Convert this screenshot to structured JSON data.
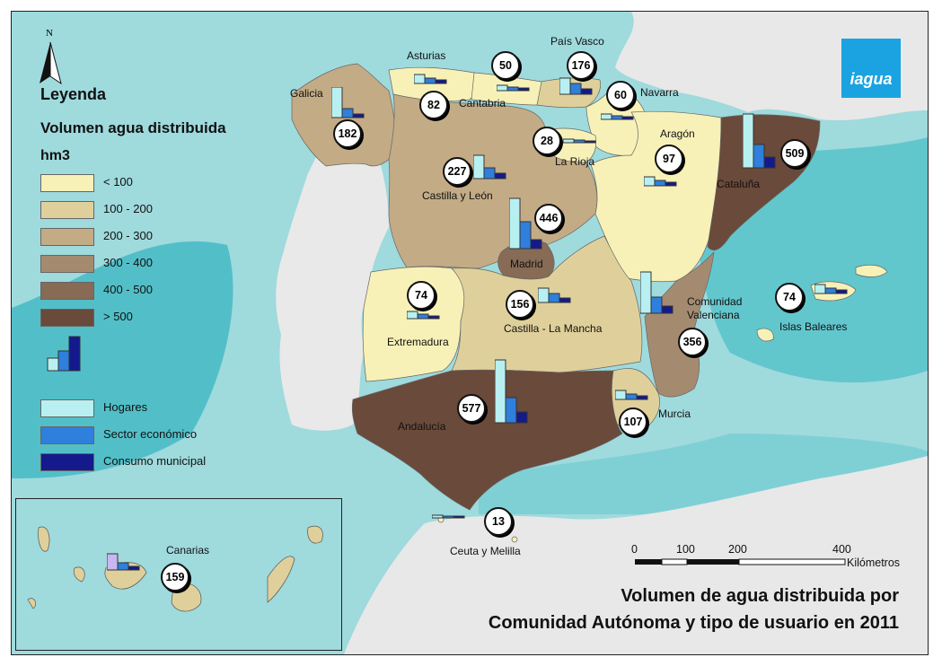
{
  "logo": {
    "text": "iagua",
    "color": "#1aa3e0"
  },
  "north_arrow": {
    "label": "N"
  },
  "legend": {
    "heading": "Leyenda",
    "title": "Volumen agua distribuida",
    "unit": "hm3",
    "classes": [
      {
        "label": "< 100",
        "color": "#f7f1b8"
      },
      {
        "label": "100 - 200",
        "color": "#dfd09b"
      },
      {
        "label": "200 - 300",
        "color": "#c3ab86"
      },
      {
        "label": "300 - 400",
        "color": "#a48b70"
      },
      {
        "label": "400 - 500",
        "color": "#876b55"
      },
      {
        "label": "> 500",
        "color": "#6a4a3a"
      }
    ],
    "users": [
      {
        "label": "Hogares",
        "color": "#b8f0f2"
      },
      {
        "label": "Sector económico",
        "color": "#2f7fdc"
      },
      {
        "label": "Consumo municipal",
        "color": "#141a8c"
      }
    ]
  },
  "regions": [
    {
      "name": "Galicia",
      "total": "182"
    },
    {
      "name": "Asturias",
      "total": "82"
    },
    {
      "name": "Cantabria",
      "total": "50"
    },
    {
      "name": "País Vasco",
      "total": "176"
    },
    {
      "name": "Navarra",
      "total": "60"
    },
    {
      "name": "La Rioja",
      "total": "28"
    },
    {
      "name": "Aragón",
      "total": "97"
    },
    {
      "name": "Cataluña",
      "total": "509"
    },
    {
      "name": "Castilla y León",
      "total": "227"
    },
    {
      "name": "Madrid",
      "total": "446"
    },
    {
      "name": "Extremadura",
      "total": "74"
    },
    {
      "name": "Castilla - La Mancha",
      "total": "156"
    },
    {
      "name": "Comunidad Valenciana",
      "total": "356"
    },
    {
      "name": "Islas Baleares",
      "total": "74"
    },
    {
      "name": "Murcia",
      "total": "107"
    },
    {
      "name": "Andalucía",
      "total": "577"
    },
    {
      "name": "Ceuta y Melilla",
      "total": "13"
    },
    {
      "name": "Canarias",
      "total": "159"
    }
  ],
  "scale_bar": {
    "ticks": [
      "0",
      "100",
      "200",
      "400"
    ],
    "unit": "Kilómetros"
  },
  "title": {
    "line1": "Volumen de agua distribuida por",
    "line2": "Comunidad Autónoma y tipo de usuario en 2011"
  },
  "colors": {
    "sea": "#9fdadd",
    "sea_deep": "#55c0c8",
    "land_other": "#e6e6e6"
  }
}
